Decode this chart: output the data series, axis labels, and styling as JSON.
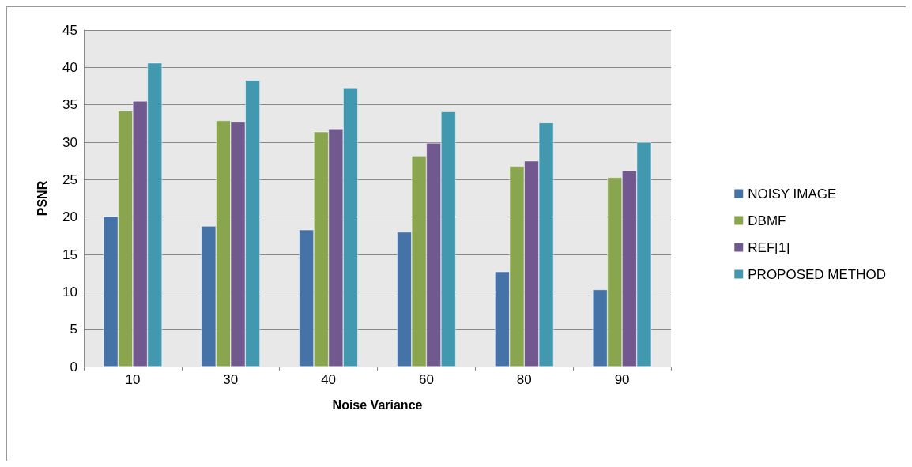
{
  "chart_data": {
    "type": "bar",
    "xlabel": "Noise Variance",
    "ylabel": "PSNR",
    "categories": [
      "10",
      "30",
      "40",
      "60",
      "80",
      "90"
    ],
    "series": [
      {
        "name": "NOISY IMAGE",
        "color": "#4572a7",
        "values": [
          20.1,
          18.8,
          18.3,
          18.0,
          12.7,
          10.3
        ]
      },
      {
        "name": "DBMF",
        "color": "#89a54e",
        "values": [
          34.2,
          32.9,
          31.4,
          28.1,
          26.8,
          25.3
        ]
      },
      {
        "name": "REF[1]",
        "color": "#71588f",
        "values": [
          35.5,
          32.7,
          31.8,
          29.9,
          27.5,
          26.2
        ]
      },
      {
        "name": "PROPOSED METHOD",
        "color": "#4198af",
        "values": [
          40.6,
          38.3,
          37.3,
          34.1,
          32.6,
          30.0
        ]
      }
    ],
    "ylim": [
      0,
      45
    ],
    "yticks": [
      0,
      5,
      10,
      15,
      20,
      25,
      30,
      35,
      40,
      45
    ],
    "grid": "y",
    "legend": "right"
  }
}
